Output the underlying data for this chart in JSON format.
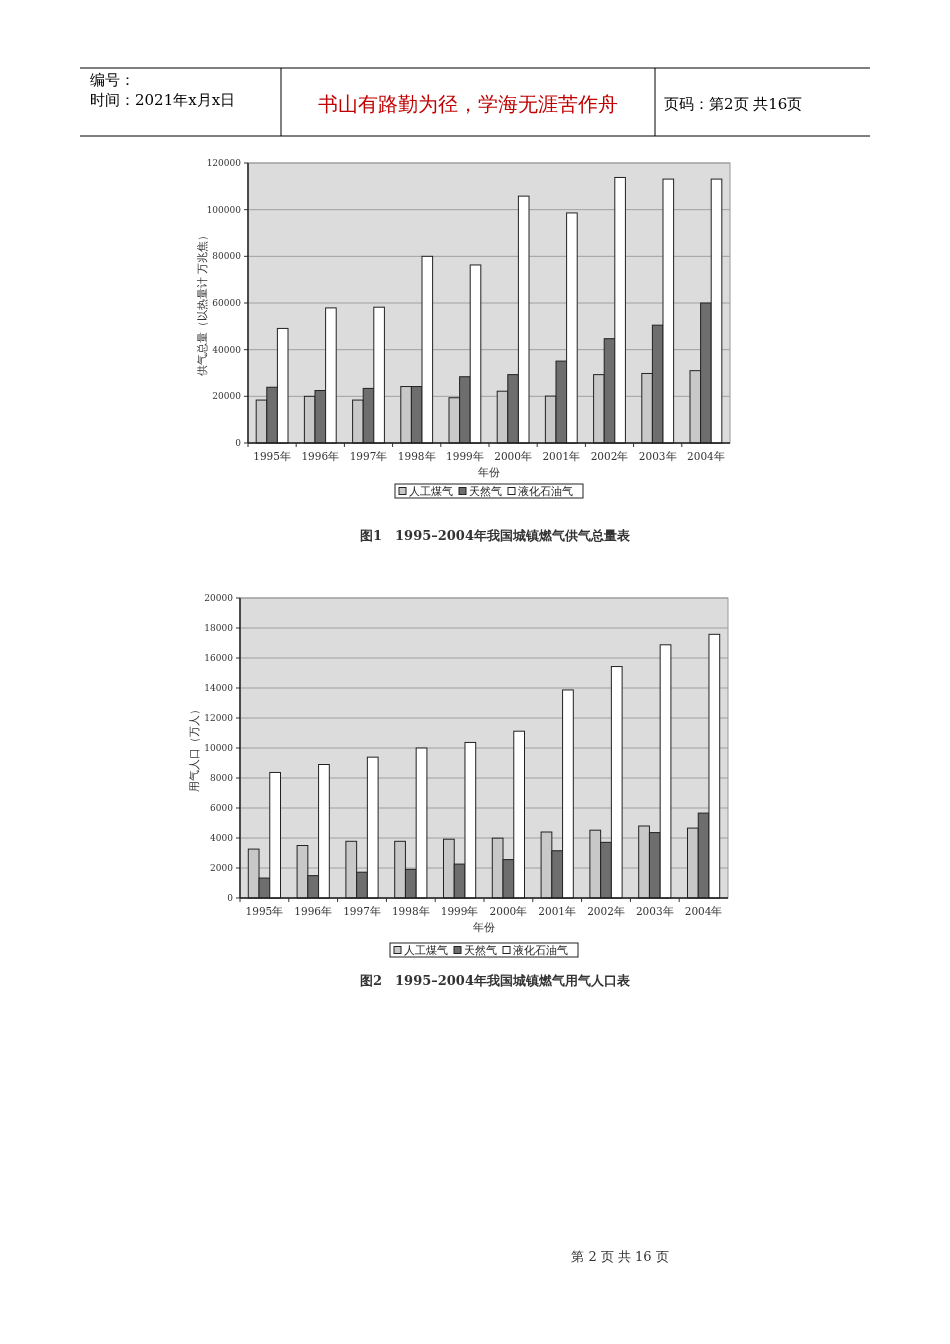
{
  "chart_data": [
    {
      "type": "bar",
      "title": "图1　1995–2004年我国城镇燃气供气总量表",
      "xlabel": "年份",
      "ylabel": "供气总量（以热量计 万兆焦）",
      "categories": [
        "1995年",
        "1996年",
        "1997年",
        "1998年",
        "1999年",
        "2000年",
        "2001年",
        "2002年",
        "2003年",
        "2004年"
      ],
      "series": [
        {
          "name": "人工煤气",
          "color": "#c8c8c8",
          "values": [
            18400,
            20000,
            18400,
            24200,
            19400,
            22200,
            20100,
            29300,
            29800,
            31000
          ]
        },
        {
          "name": "天然气",
          "color": "#6e6e6e",
          "values": [
            23900,
            22500,
            23400,
            24200,
            28400,
            29300,
            35100,
            44700,
            50500,
            60000
          ]
        },
        {
          "name": "液化石油气",
          "color": "#ffffff",
          "values": [
            49100,
            57900,
            58200,
            80000,
            76300,
            105800,
            98600,
            113800,
            113100,
            113100
          ]
        }
      ],
      "ylim": [
        0,
        120000
      ],
      "yticks": [
        0,
        20000,
        40000,
        60000,
        80000,
        100000,
        120000
      ],
      "grid": "y",
      "legend": "bottom",
      "annotations": [
        "编号：",
        "时间：2021年x月x日",
        "书山有路勤为径，学海无涯苦作舟",
        "页码：第2页  共16页"
      ]
    },
    {
      "type": "bar",
      "title": "图2　1995–2004年我国城镇燃气用气人口表",
      "xlabel": "年份",
      "ylabel": "用气人口（万人）",
      "categories": [
        "1995年",
        "1996年",
        "1997年",
        "1998年",
        "1999年",
        "2000年",
        "2001年",
        "2002年",
        "2003年",
        "2004年"
      ],
      "series": [
        {
          "name": "人工煤气",
          "color": "#c8c8c8",
          "values": [
            3260,
            3500,
            3780,
            3780,
            3920,
            3990,
            4400,
            4520,
            4800,
            4660
          ]
        },
        {
          "name": "天然气",
          "color": "#6e6e6e",
          "values": [
            1330,
            1490,
            1720,
            1910,
            2260,
            2560,
            3150,
            3710,
            4360,
            5660
          ]
        },
        {
          "name": "液化石油气",
          "color": "#ffffff",
          "values": [
            8370,
            8900,
            9390,
            10000,
            10370,
            11120,
            13870,
            15430,
            16880,
            17580
          ]
        }
      ],
      "ylim": [
        0,
        20000
      ],
      "yticks": [
        0,
        2000,
        4000,
        6000,
        8000,
        10000,
        12000,
        14000,
        16000,
        18000,
        20000
      ],
      "grid": "y",
      "legend": "bottom",
      "annotations": [
        "第 2 页 共 16 页"
      ]
    }
  ]
}
